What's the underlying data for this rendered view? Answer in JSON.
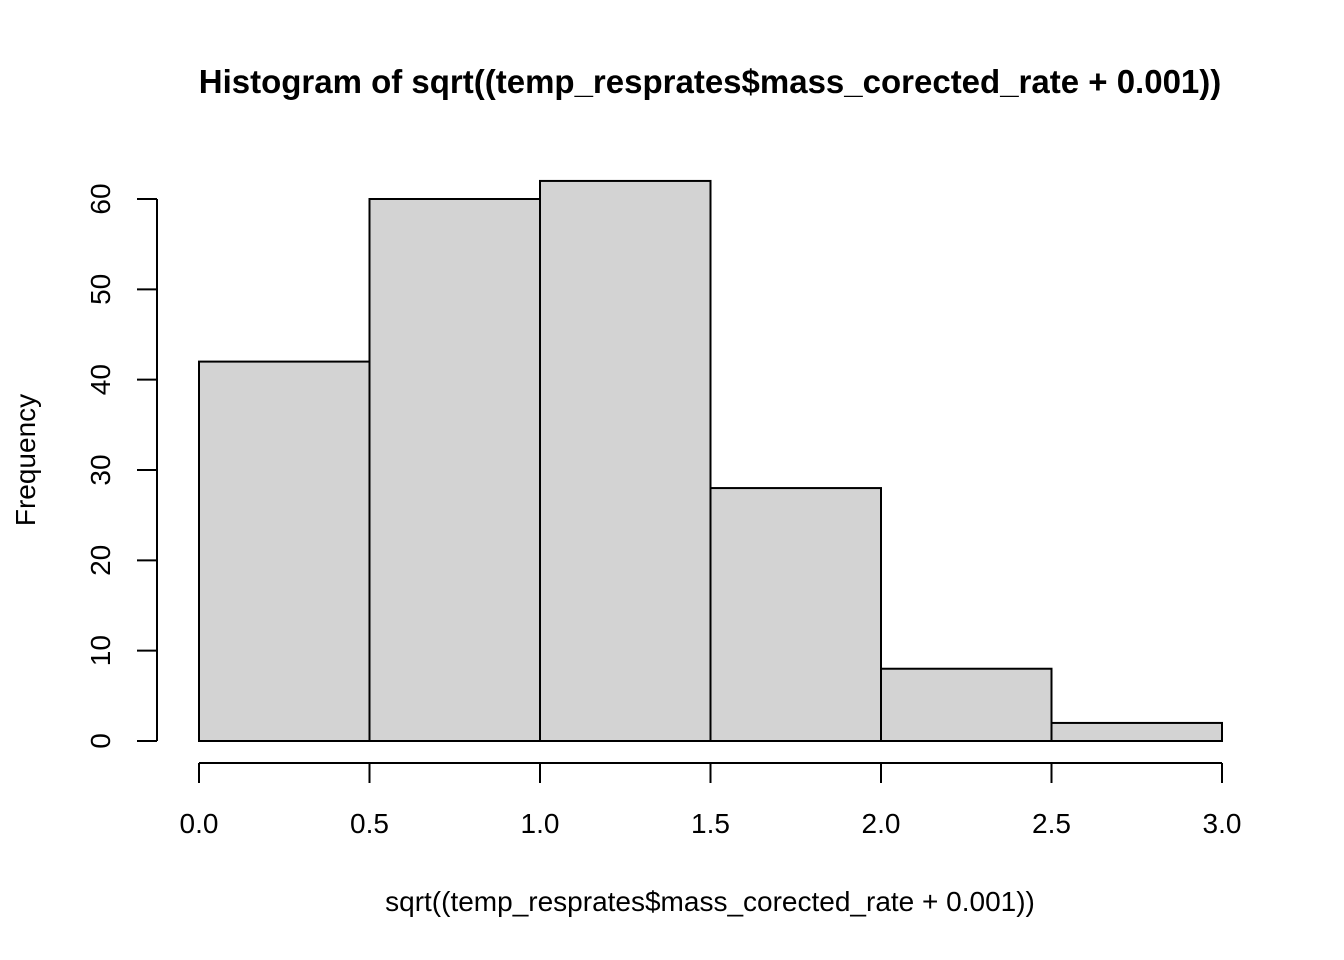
{
  "chart_data": {
    "type": "bar",
    "title": "Histogram of sqrt((temp_resprates$mass_corected_rate + 0.001))",
    "xlabel": "sqrt((temp_resprates$mass_corected_rate + 0.001))",
    "ylabel": "Frequency",
    "bins": [
      {
        "from": 0.0,
        "to": 0.5,
        "count": 42
      },
      {
        "from": 0.5,
        "to": 1.0,
        "count": 60
      },
      {
        "from": 1.0,
        "to": 1.5,
        "count": 62
      },
      {
        "from": 1.5,
        "to": 2.0,
        "count": 28
      },
      {
        "from": 2.0,
        "to": 2.5,
        "count": 8
      },
      {
        "from": 2.5,
        "to": 3.0,
        "count": 2
      }
    ],
    "xlim": [
      0,
      3
    ],
    "ylim": [
      0,
      60
    ],
    "xticks": [
      "0.0",
      "0.5",
      "1.0",
      "1.5",
      "2.0",
      "2.5",
      "3.0"
    ],
    "yticks": [
      "0",
      "10",
      "20",
      "30",
      "40",
      "50",
      "60"
    ],
    "grid": false,
    "bar_color": "#d3d3d3",
    "edge_color": "#000000"
  }
}
